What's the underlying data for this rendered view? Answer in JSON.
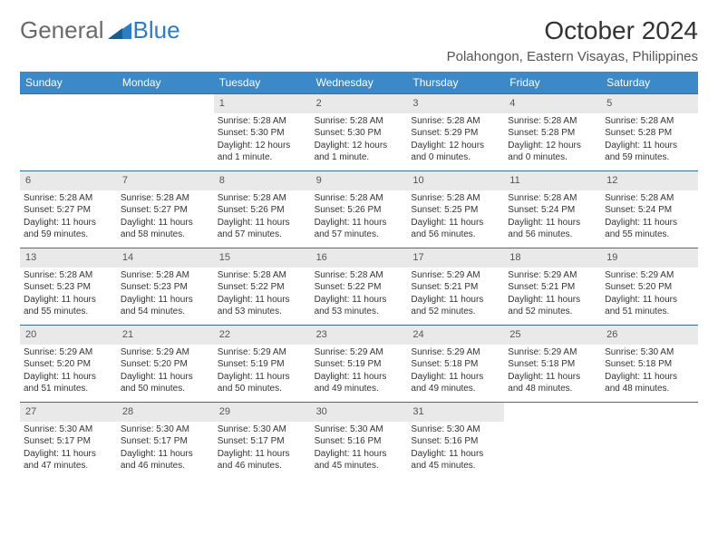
{
  "logo": {
    "text_general": "General",
    "text_blue": "Blue"
  },
  "header": {
    "month_title": "October 2024",
    "location": "Polahongon, Eastern Visayas, Philippines"
  },
  "colors": {
    "header_bar": "#3b89c9",
    "week_divider": "#3b6f9a",
    "daynum_bg": "#e9e9e9",
    "logo_gray": "#6a6a6a",
    "logo_blue": "#2b7ec2"
  },
  "days_of_week": [
    "Sunday",
    "Monday",
    "Tuesday",
    "Wednesday",
    "Thursday",
    "Friday",
    "Saturday"
  ],
  "weeks": [
    [
      {
        "n": "",
        "sr": "",
        "ss": "",
        "dl": ""
      },
      {
        "n": "",
        "sr": "",
        "ss": "",
        "dl": ""
      },
      {
        "n": "1",
        "sr": "Sunrise: 5:28 AM",
        "ss": "Sunset: 5:30 PM",
        "dl": "Daylight: 12 hours and 1 minute."
      },
      {
        "n": "2",
        "sr": "Sunrise: 5:28 AM",
        "ss": "Sunset: 5:30 PM",
        "dl": "Daylight: 12 hours and 1 minute."
      },
      {
        "n": "3",
        "sr": "Sunrise: 5:28 AM",
        "ss": "Sunset: 5:29 PM",
        "dl": "Daylight: 12 hours and 0 minutes."
      },
      {
        "n": "4",
        "sr": "Sunrise: 5:28 AM",
        "ss": "Sunset: 5:28 PM",
        "dl": "Daylight: 12 hours and 0 minutes."
      },
      {
        "n": "5",
        "sr": "Sunrise: 5:28 AM",
        "ss": "Sunset: 5:28 PM",
        "dl": "Daylight: 11 hours and 59 minutes."
      }
    ],
    [
      {
        "n": "6",
        "sr": "Sunrise: 5:28 AM",
        "ss": "Sunset: 5:27 PM",
        "dl": "Daylight: 11 hours and 59 minutes."
      },
      {
        "n": "7",
        "sr": "Sunrise: 5:28 AM",
        "ss": "Sunset: 5:27 PM",
        "dl": "Daylight: 11 hours and 58 minutes."
      },
      {
        "n": "8",
        "sr": "Sunrise: 5:28 AM",
        "ss": "Sunset: 5:26 PM",
        "dl": "Daylight: 11 hours and 57 minutes."
      },
      {
        "n": "9",
        "sr": "Sunrise: 5:28 AM",
        "ss": "Sunset: 5:26 PM",
        "dl": "Daylight: 11 hours and 57 minutes."
      },
      {
        "n": "10",
        "sr": "Sunrise: 5:28 AM",
        "ss": "Sunset: 5:25 PM",
        "dl": "Daylight: 11 hours and 56 minutes."
      },
      {
        "n": "11",
        "sr": "Sunrise: 5:28 AM",
        "ss": "Sunset: 5:24 PM",
        "dl": "Daylight: 11 hours and 56 minutes."
      },
      {
        "n": "12",
        "sr": "Sunrise: 5:28 AM",
        "ss": "Sunset: 5:24 PM",
        "dl": "Daylight: 11 hours and 55 minutes."
      }
    ],
    [
      {
        "n": "13",
        "sr": "Sunrise: 5:28 AM",
        "ss": "Sunset: 5:23 PM",
        "dl": "Daylight: 11 hours and 55 minutes."
      },
      {
        "n": "14",
        "sr": "Sunrise: 5:28 AM",
        "ss": "Sunset: 5:23 PM",
        "dl": "Daylight: 11 hours and 54 minutes."
      },
      {
        "n": "15",
        "sr": "Sunrise: 5:28 AM",
        "ss": "Sunset: 5:22 PM",
        "dl": "Daylight: 11 hours and 53 minutes."
      },
      {
        "n": "16",
        "sr": "Sunrise: 5:28 AM",
        "ss": "Sunset: 5:22 PM",
        "dl": "Daylight: 11 hours and 53 minutes."
      },
      {
        "n": "17",
        "sr": "Sunrise: 5:29 AM",
        "ss": "Sunset: 5:21 PM",
        "dl": "Daylight: 11 hours and 52 minutes."
      },
      {
        "n": "18",
        "sr": "Sunrise: 5:29 AM",
        "ss": "Sunset: 5:21 PM",
        "dl": "Daylight: 11 hours and 52 minutes."
      },
      {
        "n": "19",
        "sr": "Sunrise: 5:29 AM",
        "ss": "Sunset: 5:20 PM",
        "dl": "Daylight: 11 hours and 51 minutes."
      }
    ],
    [
      {
        "n": "20",
        "sr": "Sunrise: 5:29 AM",
        "ss": "Sunset: 5:20 PM",
        "dl": "Daylight: 11 hours and 51 minutes."
      },
      {
        "n": "21",
        "sr": "Sunrise: 5:29 AM",
        "ss": "Sunset: 5:20 PM",
        "dl": "Daylight: 11 hours and 50 minutes."
      },
      {
        "n": "22",
        "sr": "Sunrise: 5:29 AM",
        "ss": "Sunset: 5:19 PM",
        "dl": "Daylight: 11 hours and 50 minutes."
      },
      {
        "n": "23",
        "sr": "Sunrise: 5:29 AM",
        "ss": "Sunset: 5:19 PM",
        "dl": "Daylight: 11 hours and 49 minutes."
      },
      {
        "n": "24",
        "sr": "Sunrise: 5:29 AM",
        "ss": "Sunset: 5:18 PM",
        "dl": "Daylight: 11 hours and 49 minutes."
      },
      {
        "n": "25",
        "sr": "Sunrise: 5:29 AM",
        "ss": "Sunset: 5:18 PM",
        "dl": "Daylight: 11 hours and 48 minutes."
      },
      {
        "n": "26",
        "sr": "Sunrise: 5:30 AM",
        "ss": "Sunset: 5:18 PM",
        "dl": "Daylight: 11 hours and 48 minutes."
      }
    ],
    [
      {
        "n": "27",
        "sr": "Sunrise: 5:30 AM",
        "ss": "Sunset: 5:17 PM",
        "dl": "Daylight: 11 hours and 47 minutes."
      },
      {
        "n": "28",
        "sr": "Sunrise: 5:30 AM",
        "ss": "Sunset: 5:17 PM",
        "dl": "Daylight: 11 hours and 46 minutes."
      },
      {
        "n": "29",
        "sr": "Sunrise: 5:30 AM",
        "ss": "Sunset: 5:17 PM",
        "dl": "Daylight: 11 hours and 46 minutes."
      },
      {
        "n": "30",
        "sr": "Sunrise: 5:30 AM",
        "ss": "Sunset: 5:16 PM",
        "dl": "Daylight: 11 hours and 45 minutes."
      },
      {
        "n": "31",
        "sr": "Sunrise: 5:30 AM",
        "ss": "Sunset: 5:16 PM",
        "dl": "Daylight: 11 hours and 45 minutes."
      },
      {
        "n": "",
        "sr": "",
        "ss": "",
        "dl": ""
      },
      {
        "n": "",
        "sr": "",
        "ss": "",
        "dl": ""
      }
    ]
  ]
}
